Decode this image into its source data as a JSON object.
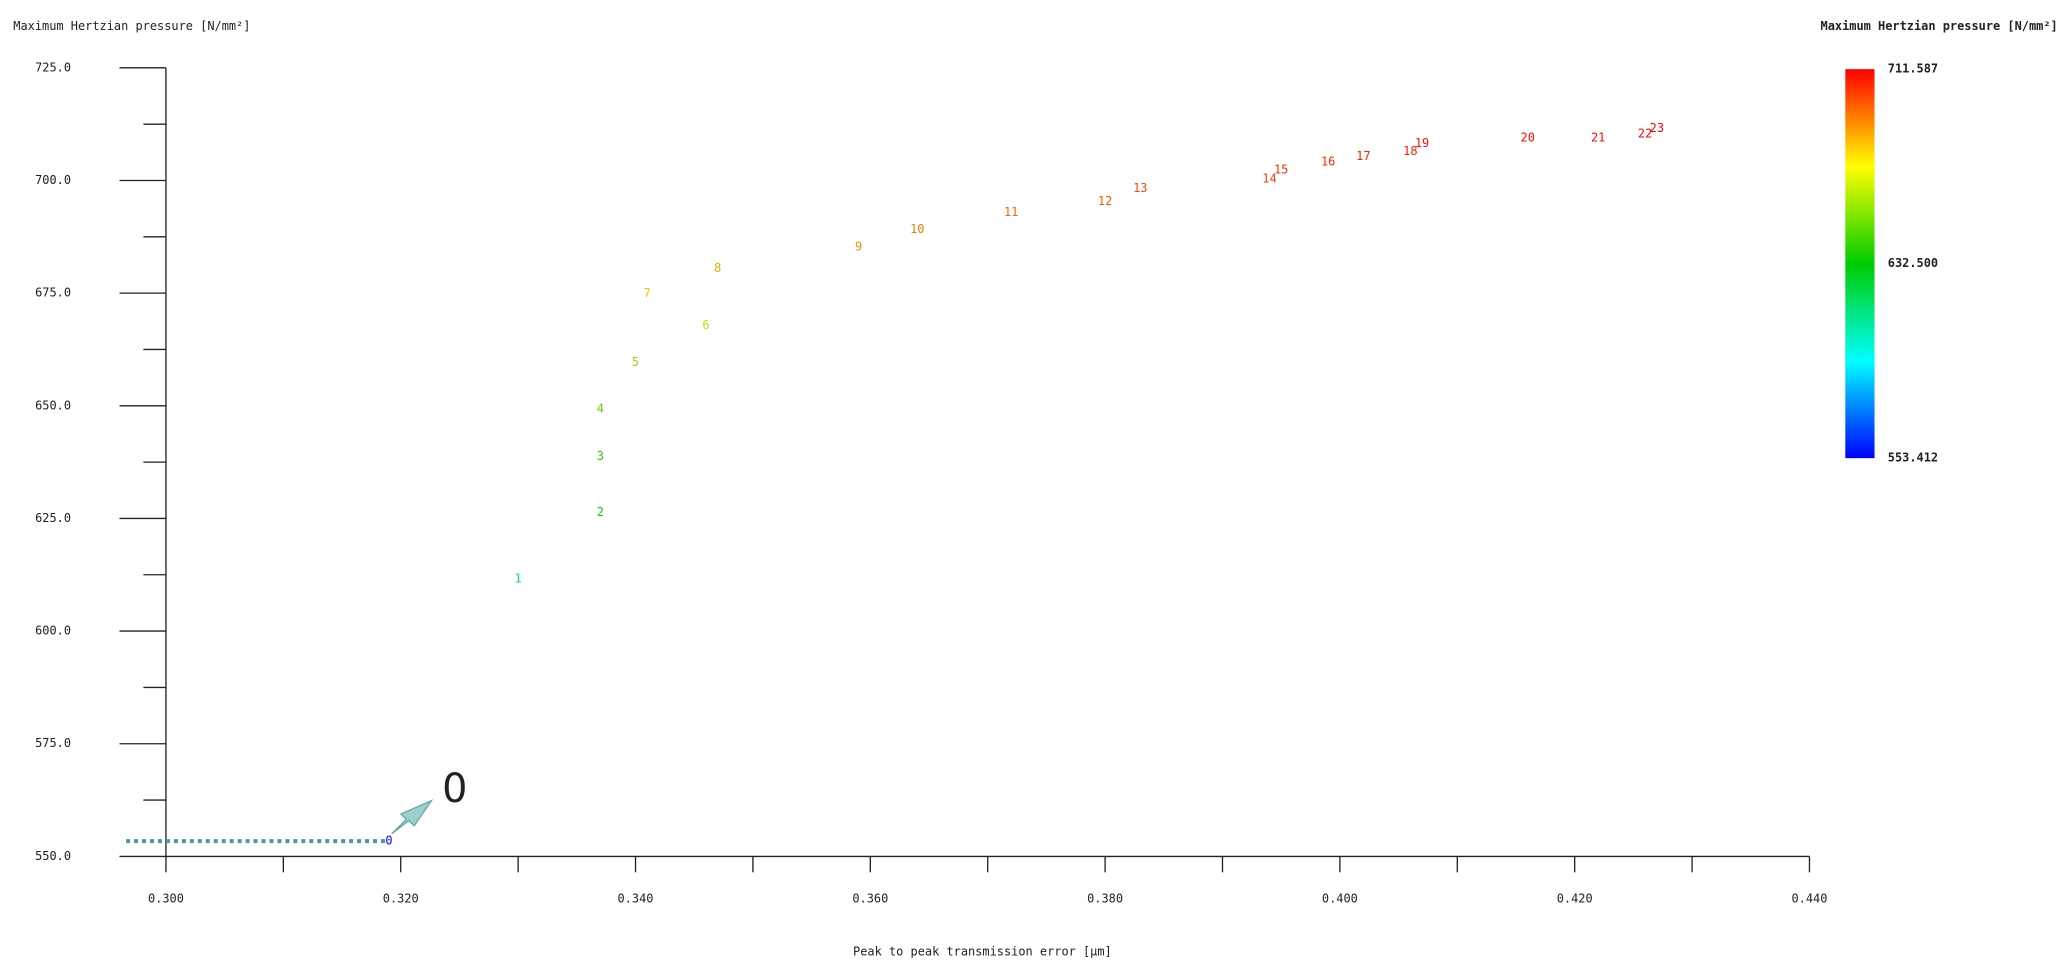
{
  "chart_data": {
    "type": "scatter",
    "y_label": "Maximum Hertzian pressure [N/mm²]",
    "x_label": "Peak to peak transmission error [μm]",
    "colorbar_title": "Maximum Hertzian pressure [N/mm²]",
    "colorlim": [
      553.412,
      711.587
    ],
    "colorticks": [
      711.587,
      {
        "value": 632.5,
        "label": "632.500"
      },
      553.412
    ],
    "annotation": "0",
    "point_labels": [
      "0",
      "1",
      "2",
      "3",
      "4",
      "5",
      "6",
      "7",
      "8",
      "9",
      "10",
      "11",
      "12",
      "13",
      "14",
      "15",
      "16",
      "17",
      "18",
      "19",
      "20",
      "21",
      "22",
      "23"
    ],
    "x": [
      0.319,
      0.33,
      0.337,
      0.337,
      0.337,
      0.34,
      0.346,
      0.341,
      0.347,
      0.359,
      0.364,
      0.372,
      0.38,
      0.383,
      0.394,
      0.395,
      0.399,
      0.402,
      0.406,
      0.407,
      0.416,
      0.422,
      0.426,
      0.427
    ],
    "values": [
      553.4,
      611.6,
      626.3,
      638.7,
      649.3,
      659.6,
      667.8,
      674.9,
      680.5,
      685.2,
      689.1,
      692.9,
      695.3,
      698.2,
      700.3,
      702.3,
      704.1,
      705.3,
      706.4,
      708.2,
      709.4,
      709.4,
      710.3,
      711.5
    ],
    "xlim": [
      0.3,
      0.44
    ],
    "ylim": [
      550,
      725
    ],
    "xticks": [
      {
        "value": 0.3,
        "label": "0.300"
      },
      {
        "value": 0.32,
        "label": "0.320"
      },
      {
        "value": 0.34,
        "label": "0.340"
      },
      {
        "value": 0.36,
        "label": "0.360"
      },
      {
        "value": 0.38,
        "label": "0.380"
      },
      {
        "value": 0.4,
        "label": "0.400"
      },
      {
        "value": 0.42,
        "label": "0.420"
      },
      {
        "value": 0.44,
        "label": "0.440"
      }
    ],
    "xminorticks": [
      0.31,
      0.33,
      0.35,
      0.37,
      0.39,
      0.41,
      0.43
    ],
    "yticks": [
      {
        "value": 550,
        "label": "550.0"
      },
      {
        "value": 575,
        "label": "575.0"
      },
      {
        "value": 600,
        "label": "600.0"
      },
      {
        "value": 625,
        "label": "625.0"
      },
      {
        "value": 650,
        "label": "650.0"
      },
      {
        "value": 675,
        "label": "675.0"
      },
      {
        "value": 700,
        "label": "700.0"
      },
      {
        "value": 725,
        "label": "725.0"
      }
    ],
    "yminorticks": [
      562.5,
      587.5,
      612.5,
      637.5,
      662.5,
      687.5,
      712.5
    ]
  }
}
